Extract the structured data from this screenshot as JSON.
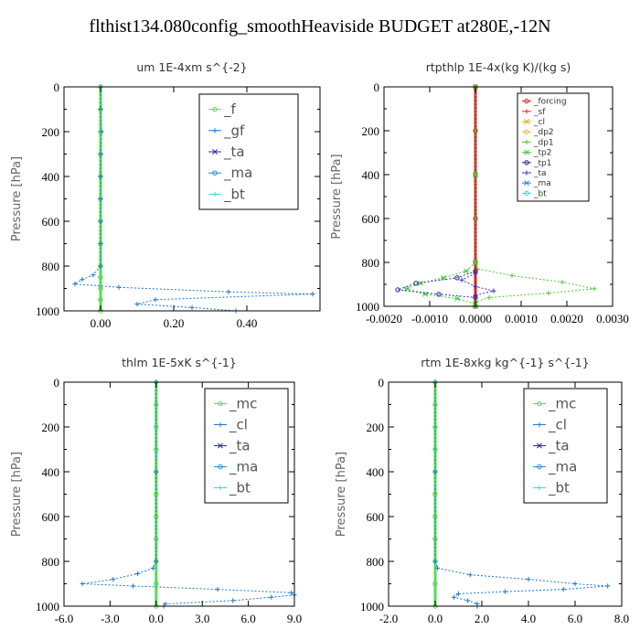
{
  "title": "flthist134.080config_smoothHeaviside  BUDGET at280E,-12N",
  "chart_data": [
    {
      "type": "line",
      "title": "um   1E-4xm s^{-2}",
      "ylabel": "Pressure [hPa]",
      "xlim": [
        -0.1,
        0.6
      ],
      "ylim": [
        1000,
        0
      ],
      "xticks": [
        0.0,
        0.2,
        0.4
      ],
      "xtick_labels": [
        "0.00",
        "0.20",
        "0.40"
      ],
      "yticks": [
        0,
        200,
        400,
        600,
        800,
        1000
      ],
      "ytick_labels": [
        "0",
        "200",
        "400",
        "600",
        "800",
        "1000"
      ],
      "legend": {
        "placement": "top-right",
        "size": "large"
      },
      "series": [
        {
          "name": "_f",
          "color": "#55dd55",
          "values": [
            [
              0,
              0
            ],
            [
              0,
              100
            ],
            [
              0,
              200
            ],
            [
              0,
              300
            ],
            [
              0,
              400
            ],
            [
              0,
              500
            ],
            [
              0,
              600
            ],
            [
              0,
              700
            ],
            [
              0,
              800
            ],
            [
              0,
              850
            ],
            [
              0,
              900
            ],
            [
              0,
              950
            ],
            [
              0,
              1000
            ]
          ]
        },
        {
          "name": "_gf",
          "color": "#1e78d2",
          "values": [
            [
              0,
              0
            ],
            [
              0,
              100
            ],
            [
              0.003,
              200
            ],
            [
              0,
              300
            ],
            [
              0,
              400
            ],
            [
              0,
              500
            ],
            [
              0,
              600
            ],
            [
              0,
              700
            ],
            [
              0,
              800
            ],
            [
              -0.02,
              840
            ],
            [
              -0.05,
              860
            ],
            [
              -0.07,
              880
            ],
            [
              0.05,
              895
            ],
            [
              0.35,
              915
            ],
            [
              0.58,
              925
            ],
            [
              0.15,
              950
            ],
            [
              0.1,
              970
            ],
            [
              0.25,
              985
            ],
            [
              0.37,
              1000
            ]
          ]
        },
        {
          "name": "_ta",
          "color": "#2a2ab8",
          "values": []
        },
        {
          "name": "_ma",
          "color": "#2a8ad8",
          "values": []
        },
        {
          "name": "_bt",
          "color": "#33dddd",
          "values": []
        }
      ]
    },
    {
      "type": "line",
      "title": "rtpthlp   1E-4x(kg K)/(kg s)",
      "ylabel": "Pressure [hPa]",
      "xlim": [
        -0.002,
        0.003
      ],
      "ylim": [
        1000,
        0
      ],
      "xticks": [
        -0.002,
        -0.001,
        0.0,
        0.001,
        0.002,
        0.003
      ],
      "xtick_labels": [
        "-0.0020",
        "-0.0010",
        "0.0000",
        "0.0010",
        "0.0020",
        "0.0030"
      ],
      "yticks": [
        0,
        200,
        400,
        600,
        800,
        1000
      ],
      "ytick_labels": [
        "0",
        "200",
        "400",
        "600",
        "800",
        "1000"
      ],
      "legend": {
        "placement": "top-right",
        "size": "small"
      },
      "series": [
        {
          "name": "_forcing",
          "color": "#dd2222",
          "values": [
            [
              0,
              0
            ],
            [
              0,
              200
            ],
            [
              0,
              400
            ],
            [
              0,
              600
            ],
            [
              0,
              800
            ],
            [
              0,
              1000
            ]
          ]
        },
        {
          "name": "_sf",
          "color": "#ee3333",
          "values": []
        },
        {
          "name": "_cl",
          "color": "#eeaa22",
          "values": []
        },
        {
          "name": "_dp2",
          "color": "#e0c040",
          "values": []
        },
        {
          "name": "_dp1",
          "color": "#55cc33",
          "values": [
            [
              0,
              0
            ],
            [
              0,
              200
            ],
            [
              0,
              400
            ],
            [
              0,
              600
            ],
            [
              0,
              800
            ],
            [
              5e-05,
              830
            ],
            [
              0.0008,
              860
            ],
            [
              0.0019,
              890
            ],
            [
              0.0026,
              920
            ],
            [
              0.0016,
              940
            ],
            [
              0.0003,
              960
            ],
            [
              0,
              980
            ],
            [
              0,
              1000
            ]
          ]
        },
        {
          "name": "_tp2",
          "color": "#44cc44",
          "values": [
            [
              0,
              0
            ],
            [
              0,
              400
            ],
            [
              0,
              800
            ],
            [
              -0.0002,
              840
            ],
            [
              -0.0007,
              870
            ],
            [
              -0.0012,
              895
            ],
            [
              -0.0015,
              920
            ],
            [
              -0.0011,
              945
            ],
            [
              -0.0004,
              965
            ],
            [
              0,
              990
            ],
            [
              0,
              1000
            ]
          ]
        },
        {
          "name": "_tp1",
          "color": "#2a2a9a",
          "values": [
            [
              0,
              840
            ],
            [
              -0.0004,
              870
            ],
            [
              -0.0013,
              895
            ],
            [
              -0.0017,
              925
            ],
            [
              -0.0008,
              945
            ],
            [
              0,
              960
            ]
          ]
        },
        {
          "name": "_ta",
          "color": "#3333cc",
          "values": [
            [
              0,
              850
            ],
            [
              -0.0003,
              880
            ],
            [
              0,
              910
            ],
            [
              0.0004,
              930
            ],
            [
              0,
              950
            ]
          ]
        },
        {
          "name": "_ma",
          "color": "#2a8ad8",
          "values": []
        },
        {
          "name": "_bt",
          "color": "#33dddd",
          "values": []
        }
      ]
    },
    {
      "type": "line",
      "title": "thlm   1E-5xK s^{-1}",
      "ylabel": "Pressure [hPa]",
      "xlim": [
        -6.0,
        9.0
      ],
      "ylim": [
        1000,
        0
      ],
      "xticks": [
        -6.0,
        -3.0,
        0.0,
        3.0,
        6.0,
        9.0
      ],
      "xtick_labels": [
        "-6.0",
        "-3.0",
        "0.0",
        "3.0",
        "6.0",
        "9.0"
      ],
      "yticks": [
        0,
        200,
        400,
        600,
        800,
        1000
      ],
      "ytick_labels": [
        "0",
        "200",
        "400",
        "600",
        "800",
        "1000"
      ],
      "legend": {
        "placement": "top-right",
        "size": "large"
      },
      "series": [
        {
          "name": "_mc",
          "color": "#55dd55",
          "values": [
            [
              0,
              0
            ],
            [
              0,
              100
            ],
            [
              0,
              200
            ],
            [
              0,
              300
            ],
            [
              0,
              400
            ],
            [
              0,
              500
            ],
            [
              0,
              600
            ],
            [
              0,
              700
            ],
            [
              0,
              800
            ],
            [
              0,
              900
            ],
            [
              0,
              1000
            ]
          ]
        },
        {
          "name": "_cl",
          "color": "#1e78d2",
          "values": [
            [
              0,
              0
            ],
            [
              0,
              400
            ],
            [
              0,
              800
            ],
            [
              -0.2,
              830
            ],
            [
              -1.2,
              855
            ],
            [
              -2.8,
              880
            ],
            [
              -4.8,
              900
            ],
            [
              -1.5,
              910
            ],
            [
              4,
              925
            ],
            [
              8.8,
              940
            ],
            [
              9.0,
              950
            ],
            [
              7.5,
              960
            ],
            [
              5,
              975
            ],
            [
              0.6,
              990
            ],
            [
              0.5,
              1000
            ]
          ]
        },
        {
          "name": "_ta",
          "color": "#2a2ab8",
          "values": []
        },
        {
          "name": "_ma",
          "color": "#2a8ad8",
          "values": []
        },
        {
          "name": "_bt",
          "color": "#33dddd",
          "values": []
        }
      ]
    },
    {
      "type": "line",
      "title": "rtm   1E-8xkg kg^{-1} s^{-1}",
      "ylabel": "Pressure [hPa]",
      "xlim": [
        -2.0,
        8.0
      ],
      "ylim": [
        1000,
        0
      ],
      "xticks": [
        -2.0,
        0.0,
        2.0,
        4.0,
        6.0,
        8.0
      ],
      "xtick_labels": [
        "-2.0",
        "0.0",
        "2.0",
        "4.0",
        "6.0",
        "8.0"
      ],
      "yticks": [
        0,
        200,
        400,
        600,
        800,
        1000
      ],
      "ytick_labels": [
        "0",
        "200",
        "400",
        "600",
        "800",
        "1000"
      ],
      "legend": {
        "placement": "top-right",
        "size": "large"
      },
      "series": [
        {
          "name": "_mc",
          "color": "#55dd55",
          "values": [
            [
              0,
              0
            ],
            [
              0,
              100
            ],
            [
              0,
              200
            ],
            [
              0,
              300
            ],
            [
              0,
              400
            ],
            [
              0,
              500
            ],
            [
              0,
              600
            ],
            [
              0,
              700
            ],
            [
              0,
              800
            ],
            [
              0,
              900
            ],
            [
              0,
              1000
            ]
          ]
        },
        {
          "name": "_cl",
          "color": "#1e78d2",
          "values": [
            [
              0,
              0
            ],
            [
              0,
              400
            ],
            [
              0,
              800
            ],
            [
              0.1,
              830
            ],
            [
              1.5,
              860
            ],
            [
              4.0,
              880
            ],
            [
              6.0,
              900
            ],
            [
              7.4,
              910
            ],
            [
              5.5,
              925
            ],
            [
              3.0,
              935
            ],
            [
              1.0,
              945
            ],
            [
              0.8,
              960
            ],
            [
              1.4,
              975
            ],
            [
              1.8,
              990
            ],
            [
              1.8,
              1000
            ]
          ]
        },
        {
          "name": "_ta",
          "color": "#2a2ab8",
          "values": []
        },
        {
          "name": "_ma",
          "color": "#2a8ad8",
          "values": []
        },
        {
          "name": "_bt",
          "color": "#33dddd",
          "values": []
        }
      ]
    }
  ]
}
